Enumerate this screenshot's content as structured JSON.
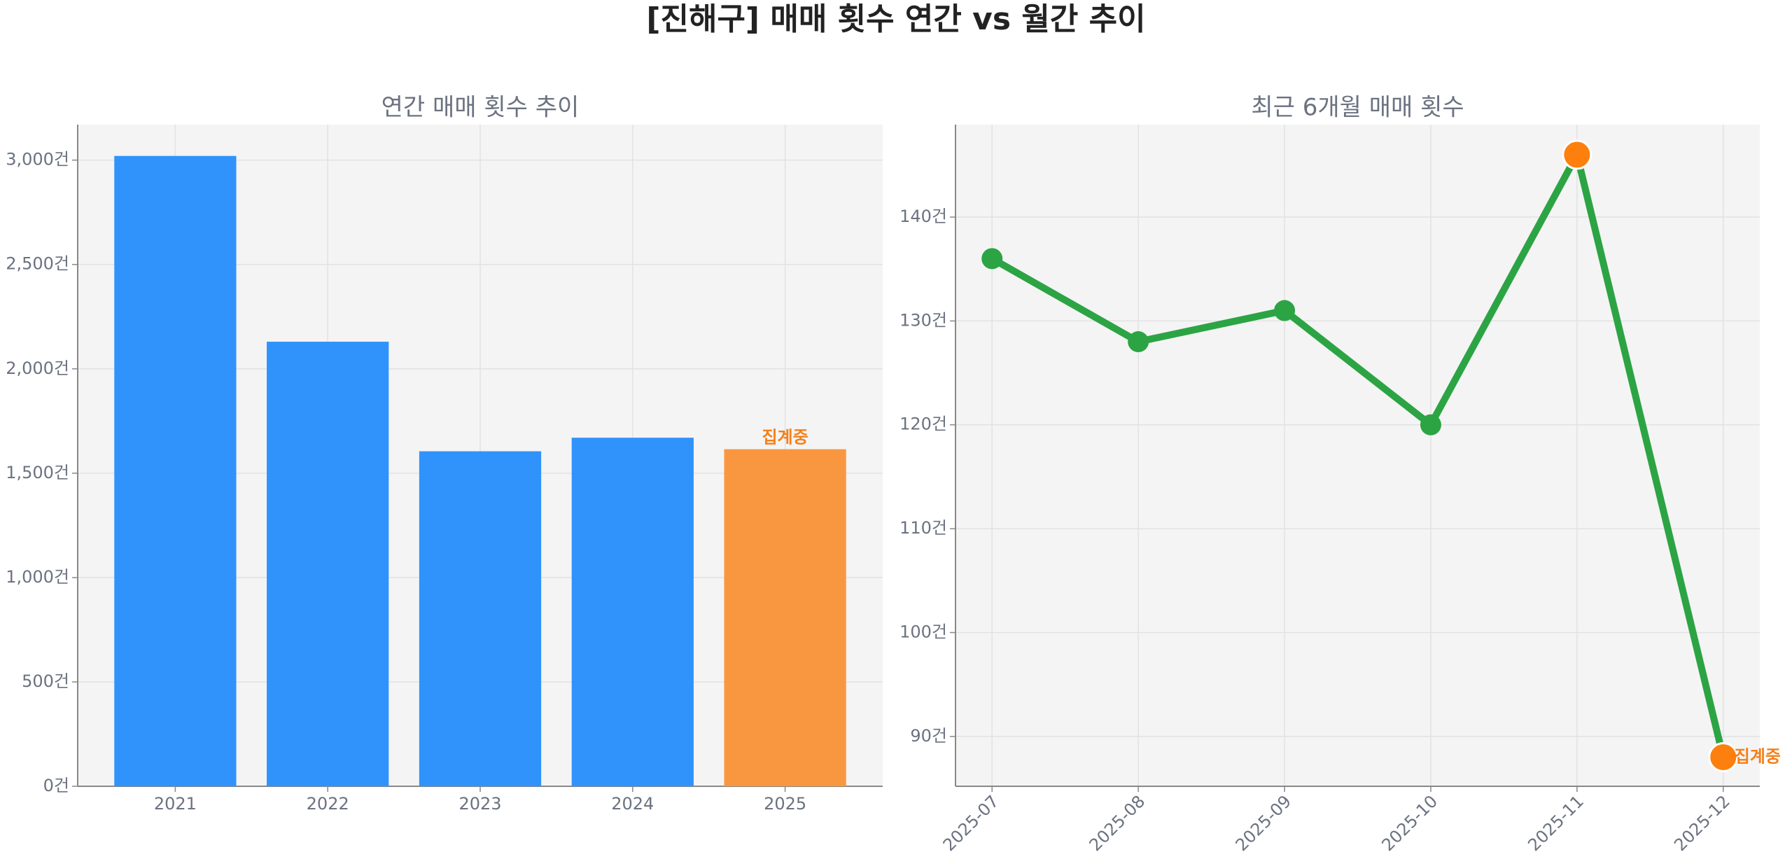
{
  "title": "[진해구] 매매 횟수 연간 vs 월간 추이",
  "chart_data": [
    {
      "type": "bar",
      "title": "연간 매매 횟수 추이",
      "categories": [
        "2021",
        "2022",
        "2023",
        "2024",
        "2025"
      ],
      "values": [
        3020,
        2130,
        1605,
        1670,
        1615
      ],
      "colors": [
        "#3093fb",
        "#3093fb",
        "#3093fb",
        "#3093fb",
        "#f99740"
      ],
      "annotation": "집계중",
      "annotation_color": "#f57f17",
      "ylim": [
        0,
        3170
      ],
      "yticks": [
        {
          "value": 0,
          "label": "0건"
        },
        {
          "value": 500,
          "label": "500건"
        },
        {
          "value": 1000,
          "label": "1,000건"
        },
        {
          "value": 1500,
          "label": "1,500건"
        },
        {
          "value": 2000,
          "label": "2,000건"
        },
        {
          "value": 2500,
          "label": "2,500건"
        },
        {
          "value": 3000,
          "label": "3,000건"
        }
      ],
      "grid": true
    },
    {
      "type": "line",
      "title": "최근 6개월 매매 횟수",
      "categories": [
        "2025-07",
        "2025-08",
        "2025-09",
        "2025-10",
        "2025-11",
        "2025-12"
      ],
      "series": [
        {
          "color": "#2ca444",
          "values": [
            136,
            128,
            131,
            120,
            146,
            88
          ]
        }
      ],
      "marker_colors": [
        "#2ca444",
        "#2ca444",
        "#2ca444",
        "#2ca444",
        "#fd7f0e",
        "#fd7f0e"
      ],
      "annotation": "집계중",
      "annotation_color": "#f57f17",
      "ylim": [
        85.2,
        148.9
      ],
      "yticks": [
        {
          "value": 90,
          "label": "90건"
        },
        {
          "value": 100,
          "label": "100건"
        },
        {
          "value": 110,
          "label": "110건"
        },
        {
          "value": 120,
          "label": "120건"
        },
        {
          "value": 130,
          "label": "130건"
        },
        {
          "value": 140,
          "label": "140건"
        }
      ],
      "grid": true
    }
  ]
}
